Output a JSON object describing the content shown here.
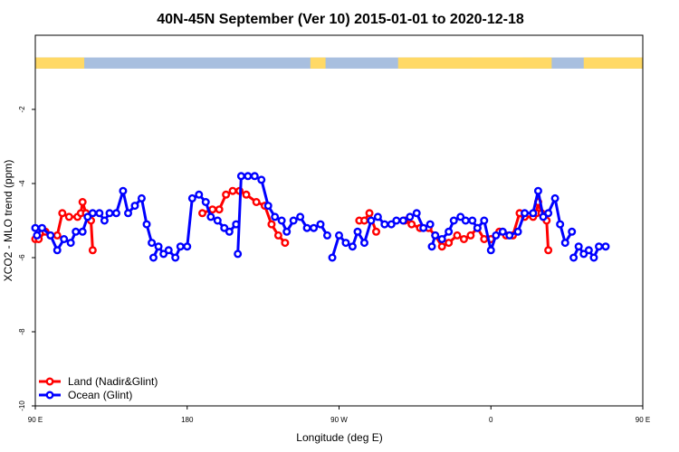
{
  "chart_data": {
    "type": "line",
    "title": "40N-45N September (Ver 10)   2015-01-01 to 2020-12-18",
    "xlabel": "Longitude (deg E)",
    "ylabel": "XCO2 - MLO trend (ppm)",
    "xlim": [
      90,
      450
    ],
    "ylim": [
      -10,
      0
    ],
    "x_ticks": [
      {
        "value": 90,
        "label": "90 E"
      },
      {
        "value": 180,
        "label": "180"
      },
      {
        "value": 270,
        "label": "90 W"
      },
      {
        "value": 360,
        "label": "0"
      },
      {
        "value": 450,
        "label": "90 E"
      },
      {
        "value": 540,
        "label": "180"
      }
    ],
    "y_ticks": [
      {
        "value": -2,
        "label": "-2"
      },
      {
        "value": -4,
        "label": "-4"
      },
      {
        "value": -6,
        "label": "-6"
      },
      {
        "value": -8,
        "label": "-8"
      },
      {
        "value": -10,
        "label": "-10"
      }
    ],
    "grid": false,
    "legend_position": "bottom-left",
    "landmask_band": {
      "y_top": -0.6,
      "y_bottom": -0.9,
      "land_color": "#FFD966",
      "ocean_color": "#A8BFDF",
      "land_ranges": [
        [
          90,
          119
        ],
        [
          253,
          262
        ],
        [
          305,
          396
        ],
        [
          349,
          379
        ],
        [
          415,
          481
        ],
        [
          505,
          515
        ]
      ]
    },
    "series": [
      {
        "name": "Land (Nadir&Glint)",
        "color": "#FF0000",
        "segments": [
          [
            [
              90,
              -5.5
            ],
            [
              92,
              -5.5
            ],
            [
              96,
              -5.3
            ],
            [
              99,
              -5.4
            ],
            [
              103,
              -5.4
            ],
            [
              106,
              -4.8
            ],
            [
              110,
              -4.9
            ],
            [
              115,
              -4.9
            ],
            [
              117,
              -4.8
            ],
            [
              118,
              -4.5
            ],
            [
              120,
              -4.8
            ],
            [
              123,
              -5.0
            ],
            [
              124,
              -5.8
            ]
          ],
          [
            [
              189,
              -4.8
            ],
            [
              195,
              -4.7
            ],
            [
              199,
              -4.7
            ],
            [
              203,
              -4.3
            ],
            [
              207,
              -4.2
            ],
            [
              211,
              -4.2
            ],
            [
              215,
              -4.3
            ],
            [
              221,
              -4.5
            ],
            [
              226,
              -4.6
            ],
            [
              230,
              -5.1
            ],
            [
              234,
              -5.4
            ],
            [
              238,
              -5.6
            ]
          ],
          [
            [
              282,
              -5.0
            ],
            [
              285,
              -5.0
            ],
            [
              288,
              -4.8
            ],
            [
              292,
              -5.3
            ]
          ],
          [
            [
              309,
              -5.0
            ],
            [
              313,
              -5.1
            ],
            [
              318,
              -5.2
            ],
            [
              323,
              -5.2
            ],
            [
              327,
              -5.4
            ],
            [
              331,
              -5.7
            ],
            [
              335,
              -5.6
            ],
            [
              340,
              -5.4
            ],
            [
              344,
              -5.5
            ],
            [
              348,
              -5.4
            ],
            [
              352,
              -5.2
            ],
            [
              356,
              -5.5
            ],
            [
              360,
              -5.5
            ],
            [
              365,
              -5.3
            ],
            [
              369,
              -5.4
            ],
            [
              373,
              -5.4
            ],
            [
              377,
              -4.8
            ],
            [
              380,
              -4.9
            ],
            [
              385,
              -4.9
            ],
            [
              387,
              -4.8
            ],
            [
              388,
              -4.5
            ],
            [
              390,
              -4.8
            ],
            [
              393,
              -5.0
            ],
            [
              394,
              -5.8
            ]
          ]
        ]
      },
      {
        "name": "Ocean (Glint)",
        "color": "#0000FF",
        "segments": [
          [
            [
              90,
              -5.2
            ],
            [
              91,
              -5.4
            ],
            [
              94,
              -5.2
            ],
            [
              99,
              -5.4
            ],
            [
              103,
              -5.8
            ],
            [
              107,
              -5.5
            ],
            [
              111,
              -5.6
            ],
            [
              114,
              -5.3
            ],
            [
              118,
              -5.3
            ],
            [
              121,
              -4.9
            ],
            [
              124,
              -4.8
            ],
            [
              128,
              -4.8
            ],
            [
              131,
              -5.0
            ],
            [
              134,
              -4.8
            ],
            [
              138,
              -4.8
            ],
            [
              142,
              -4.2
            ],
            [
              145,
              -4.8
            ],
            [
              149,
              -4.6
            ],
            [
              153,
              -4.4
            ],
            [
              156,
              -5.1
            ],
            [
              159,
              -5.6
            ]
          ],
          [
            [
              160,
              -6.0
            ],
            [
              163,
              -5.7
            ],
            [
              166,
              -5.9
            ],
            [
              169,
              -5.8
            ],
            [
              173,
              -6.0
            ],
            [
              176,
              -5.7
            ],
            [
              180,
              -5.7
            ],
            [
              183,
              -4.4
            ],
            [
              187,
              -4.3
            ],
            [
              191,
              -4.5
            ],
            [
              194,
              -4.9
            ],
            [
              198,
              -5.0
            ],
            [
              202,
              -5.2
            ],
            [
              205,
              -5.3
            ],
            [
              209,
              -5.1
            ]
          ],
          [
            [
              210,
              -5.9
            ],
            [
              212,
              -3.8
            ],
            [
              216,
              -3.8
            ],
            [
              220,
              -3.8
            ]
          ],
          [
            [
              224,
              -3.9
            ],
            [
              228,
              -4.6
            ],
            [
              232,
              -4.9
            ],
            [
              236,
              -5.0
            ],
            [
              239,
              -5.3
            ],
            [
              243,
              -5.0
            ],
            [
              247,
              -4.9
            ],
            [
              251,
              -5.2
            ],
            [
              255,
              -5.2
            ],
            [
              259,
              -5.1
            ],
            [
              263,
              -5.4
            ]
          ],
          [
            [
              266,
              -6.0
            ],
            [
              270,
              -5.4
            ],
            [
              274,
              -5.6
            ],
            [
              278,
              -5.7
            ],
            [
              281,
              -5.3
            ],
            [
              285,
              -5.6
            ],
            [
              289,
              -5.0
            ],
            [
              293,
              -4.9
            ],
            [
              297,
              -5.1
            ],
            [
              301,
              -5.1
            ],
            [
              304,
              -5.0
            ],
            [
              308,
              -5.0
            ],
            [
              312,
              -4.9
            ],
            [
              316,
              -4.8
            ],
            [
              320,
              -5.2
            ],
            [
              324,
              -5.1
            ]
          ],
          [
            [
              325,
              -5.7
            ],
            [
              327,
              -5.4
            ],
            [
              331,
              -5.5
            ],
            [
              335,
              -5.3
            ],
            [
              338,
              -5.0
            ],
            [
              342,
              -4.9
            ],
            [
              345,
              -5.0
            ],
            [
              349,
              -5.0
            ],
            [
              352,
              -5.2
            ],
            [
              356,
              -5.0
            ],
            [
              360,
              -5.8
            ],
            [
              363,
              -5.4
            ],
            [
              367,
              -5.3
            ],
            [
              371,
              -5.4
            ],
            [
              376,
              -5.3
            ],
            [
              380,
              -4.8
            ],
            [
              385,
              -4.8
            ],
            [
              388,
              -4.2
            ],
            [
              391,
              -4.9
            ],
            [
              394,
              -4.8
            ],
            [
              398,
              -4.4
            ],
            [
              401,
              -5.1
            ],
            [
              404,
              -5.6
            ],
            [
              408,
              -5.3
            ]
          ],
          [
            [
              409,
              -6.0
            ],
            [
              412,
              -5.7
            ],
            [
              415,
              -5.9
            ],
            [
              418,
              -5.8
            ],
            [
              421,
              -6.0
            ],
            [
              424,
              -5.7
            ],
            [
              428,
              -5.7
            ]
          ]
        ]
      }
    ]
  }
}
